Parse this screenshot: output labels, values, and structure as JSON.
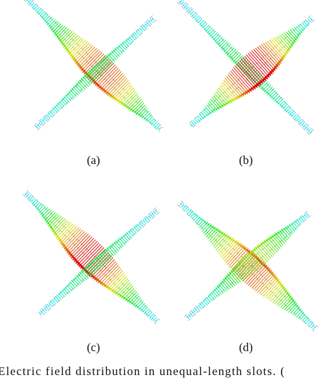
{
  "figure": {
    "subfigures": [
      {
        "label": "(a)"
      },
      {
        "label": "(b)"
      },
      {
        "label": "(c)"
      },
      {
        "label": "(d)"
      }
    ],
    "caption": "Electric field distribution in unequal-length slots. ("
  }
}
